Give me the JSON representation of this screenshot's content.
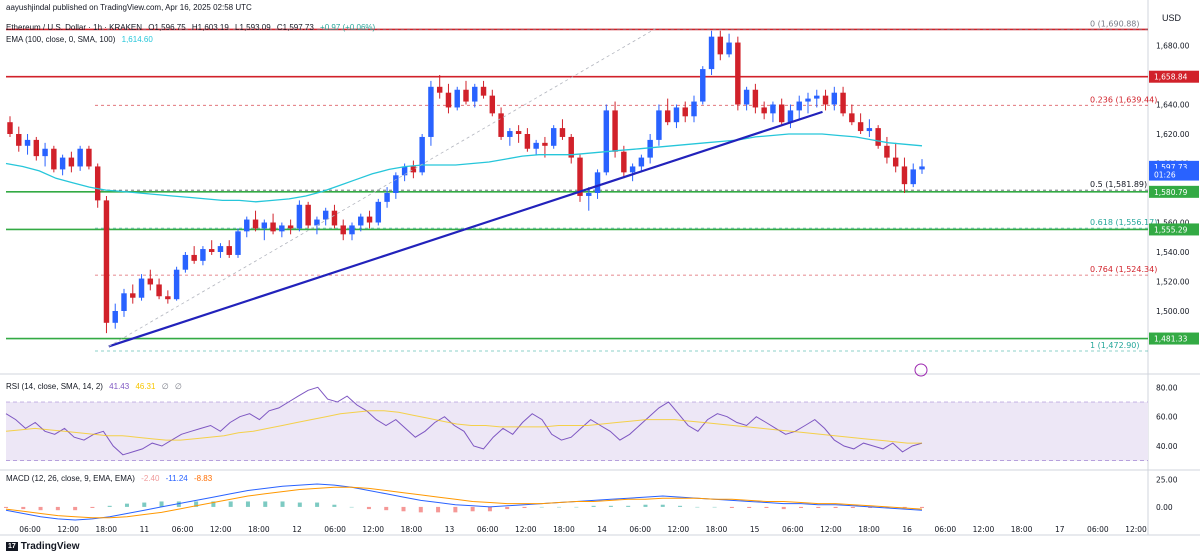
{
  "header": {
    "publisher": "aayushjindal published on TradingView.com, Apr 16, 2025 02:58 UTC",
    "symbol": "Ethereum / U.S. Dollar · 1h · KRAKEN",
    "open": "O1,596.75",
    "high": "H1,603.19",
    "low": "L1,593.09",
    "close": "C1,597.73",
    "change": "+0.97 (+0.06%)",
    "ema_label": "EMA (100, close, 0, SMA, 100)",
    "ema_value": "1,614.60",
    "currency": "USD"
  },
  "rsi_header": {
    "label": "RSI (14, close, SMA, 14, 2)",
    "value": "41.43",
    "ma": "46.31",
    "x1": "∅",
    "x2": "∅"
  },
  "macd_header": {
    "label": "MACD (12, 26, close, 9, EMA, EMA)",
    "v1": "-2.40",
    "v2": "-11.24",
    "v3": "-8.83"
  },
  "logo": "TradingView",
  "colors": {
    "up": "#2962ff",
    "down": "#d1212a",
    "ema": "#26c6da",
    "trend": "#2222bb",
    "resistance": "#d1212a",
    "support": "#33aa44",
    "rsi": "#7e57c2",
    "macd": "#2962ff",
    "signal": "#ff9800"
  },
  "chart_data": [
    {
      "type": "candlestick",
      "title": "Ethereum / U.S. Dollar · 1h · KRAKEN",
      "ylim": [
        1460,
        1700
      ],
      "y_ticks": [
        1480,
        1500,
        1520,
        1540,
        1560,
        1580,
        1600,
        1620,
        1640,
        1660,
        1680
      ],
      "y_tick_labels": [
        "1,480.00",
        "1,500.00",
        "1,520.00",
        "1,540.00",
        "1,560.00",
        "1,580.00",
        "1,600.00",
        "1,620.00",
        "1,640.00",
        "1,660.00",
        "1,680.00"
      ],
      "x_tick_labels": [
        "06:00",
        "12:00",
        "18:00",
        "11",
        "06:00",
        "12:00",
        "18:00",
        "12",
        "06:00",
        "12:00",
        "18:00",
        "13",
        "06:00",
        "12:00",
        "18:00",
        "14",
        "06:00",
        "12:00",
        "18:00",
        "15",
        "06:00",
        "12:00",
        "18:00",
        "16",
        "06:00",
        "12:00",
        "18:00",
        "17",
        "06:00",
        "12:00"
      ],
      "price_tags": [
        {
          "text": "1,658.84",
          "value": 1658.84,
          "color": "#d1212a"
        },
        {
          "text": "1,597.73",
          "value": 1597.73,
          "color": "#2962ff"
        },
        {
          "text": "01:26",
          "value": 1592.5,
          "color": "#2962ff"
        },
        {
          "text": "1,580.79",
          "value": 1580.79,
          "color": "#33aa44"
        },
        {
          "text": "1,555.29",
          "value": 1555.29,
          "color": "#33aa44"
        },
        {
          "text": "1,481.33",
          "value": 1481.33,
          "color": "#33aa44"
        }
      ],
      "fib_levels": [
        {
          "text": "0 (1,690.88)",
          "value": 1690.88,
          "color": "#787b86"
        },
        {
          "text": "0.236 (1,639.44)",
          "value": 1639.44,
          "color": "#d1212a"
        },
        {
          "text": "0.5 (1,581.89)",
          "value": 1581.89,
          "color": "#131722"
        },
        {
          "text": "0.618 (1,556.17)",
          "value": 1556.17,
          "color": "#26a69a"
        },
        {
          "text": "0.764 (1,524.34)",
          "value": 1524.34,
          "color": "#d1212a"
        },
        {
          "text": "1 (1,472.90)",
          "value": 1472.9,
          "color": "#26a69a"
        }
      ],
      "horizontal_lines": [
        {
          "value": 1690.88,
          "color": "#d1212a"
        },
        {
          "value": 1658.84,
          "color": "#d1212a"
        },
        {
          "value": 1580.79,
          "color": "#33aa44"
        },
        {
          "value": 1555.29,
          "color": "#33aa44"
        },
        {
          "value": 1481.33,
          "color": "#33aa44"
        }
      ],
      "candles": [
        [
          1628,
          1632,
          1618,
          1620
        ],
        [
          1620,
          1625,
          1608,
          1612
        ],
        [
          1612,
          1620,
          1606,
          1616
        ],
        [
          1616,
          1618,
          1602,
          1605
        ],
        [
          1605,
          1614,
          1598,
          1610
        ],
        [
          1610,
          1612,
          1594,
          1596
        ],
        [
          1596,
          1606,
          1592,
          1604
        ],
        [
          1604,
          1608,
          1594,
          1598
        ],
        [
          1598,
          1612,
          1595,
          1610
        ],
        [
          1610,
          1612,
          1596,
          1598
        ],
        [
          1598,
          1600,
          1570,
          1575
        ],
        [
          1575,
          1578,
          1485,
          1492
        ],
        [
          1492,
          1505,
          1488,
          1500
        ],
        [
          1500,
          1515,
          1496,
          1512
        ],
        [
          1512,
          1518,
          1505,
          1509
        ],
        [
          1509,
          1525,
          1507,
          1522
        ],
        [
          1522,
          1528,
          1514,
          1518
        ],
        [
          1518,
          1522,
          1508,
          1510
        ],
        [
          1510,
          1514,
          1505,
          1508
        ],
        [
          1508,
          1530,
          1507,
          1528
        ],
        [
          1528,
          1540,
          1526,
          1538
        ],
        [
          1538,
          1544,
          1532,
          1534
        ],
        [
          1534,
          1544,
          1531,
          1542
        ],
        [
          1542,
          1548,
          1538,
          1540
        ],
        [
          1540,
          1546,
          1536,
          1544
        ],
        [
          1544,
          1548,
          1536,
          1538
        ],
        [
          1538,
          1556,
          1536,
          1554
        ],
        [
          1554,
          1564,
          1550,
          1562
        ],
        [
          1562,
          1568,
          1554,
          1556
        ],
        [
          1556,
          1562,
          1548,
          1560
        ],
        [
          1560,
          1566,
          1552,
          1554
        ],
        [
          1554,
          1560,
          1550,
          1558
        ],
        [
          1558,
          1562,
          1552,
          1556
        ],
        [
          1556,
          1575,
          1554,
          1572
        ],
        [
          1572,
          1574,
          1556,
          1558
        ],
        [
          1558,
          1564,
          1552,
          1562
        ],
        [
          1562,
          1570,
          1558,
          1568
        ],
        [
          1568,
          1572,
          1556,
          1558
        ],
        [
          1558,
          1562,
          1548,
          1552
        ],
        [
          1552,
          1560,
          1548,
          1558
        ],
        [
          1558,
          1566,
          1554,
          1564
        ],
        [
          1564,
          1568,
          1556,
          1560
        ],
        [
          1560,
          1576,
          1558,
          1574
        ],
        [
          1574,
          1584,
          1570,
          1580
        ],
        [
          1580,
          1594,
          1576,
          1592
        ],
        [
          1592,
          1600,
          1588,
          1598
        ],
        [
          1598,
          1602,
          1590,
          1594
        ],
        [
          1594,
          1620,
          1592,
          1618
        ],
        [
          1618,
          1656,
          1612,
          1652
        ],
        [
          1652,
          1660,
          1644,
          1648
        ],
        [
          1648,
          1654,
          1634,
          1638
        ],
        [
          1638,
          1652,
          1636,
          1650
        ],
        [
          1650,
          1656,
          1640,
          1642
        ],
        [
          1642,
          1654,
          1638,
          1652
        ],
        [
          1652,
          1656,
          1644,
          1646
        ],
        [
          1646,
          1650,
          1632,
          1634
        ],
        [
          1634,
          1638,
          1616,
          1618
        ],
        [
          1618,
          1624,
          1612,
          1622
        ],
        [
          1622,
          1626,
          1614,
          1620
        ],
        [
          1620,
          1624,
          1608,
          1610
        ],
        [
          1610,
          1616,
          1606,
          1614
        ],
        [
          1614,
          1618,
          1604,
          1612
        ],
        [
          1612,
          1626,
          1610,
          1624
        ],
        [
          1624,
          1630,
          1616,
          1618
        ],
        [
          1618,
          1620,
          1600,
          1604
        ],
        [
          1604,
          1606,
          1574,
          1578
        ],
        [
          1578,
          1584,
          1568,
          1580
        ],
        [
          1580,
          1596,
          1576,
          1594
        ],
        [
          1594,
          1640,
          1592,
          1636
        ],
        [
          1636,
          1642,
          1604,
          1608
        ],
        [
          1608,
          1612,
          1590,
          1594
        ],
        [
          1594,
          1600,
          1588,
          1598
        ],
        [
          1598,
          1606,
          1594,
          1604
        ],
        [
          1604,
          1620,
          1600,
          1616
        ],
        [
          1616,
          1640,
          1612,
          1636
        ],
        [
          1636,
          1644,
          1626,
          1628
        ],
        [
          1628,
          1640,
          1624,
          1638
        ],
        [
          1638,
          1642,
          1628,
          1632
        ],
        [
          1632,
          1646,
          1628,
          1642
        ],
        [
          1642,
          1666,
          1640,
          1664
        ],
        [
          1664,
          1690,
          1660,
          1686
        ],
        [
          1686,
          1690,
          1670,
          1674
        ],
        [
          1674,
          1688,
          1672,
          1682
        ],
        [
          1682,
          1686,
          1636,
          1640
        ],
        [
          1640,
          1652,
          1636,
          1650
        ],
        [
          1650,
          1654,
          1634,
          1638
        ],
        [
          1638,
          1642,
          1630,
          1634
        ],
        [
          1634,
          1642,
          1628,
          1640
        ],
        [
          1640,
          1644,
          1626,
          1628
        ],
        [
          1628,
          1640,
          1624,
          1636
        ],
        [
          1636,
          1646,
          1630,
          1642
        ],
        [
          1642,
          1648,
          1634,
          1644
        ],
        [
          1644,
          1650,
          1638,
          1646
        ],
        [
          1646,
          1650,
          1636,
          1640
        ],
        [
          1640,
          1652,
          1636,
          1648
        ],
        [
          1648,
          1652,
          1632,
          1634
        ],
        [
          1634,
          1640,
          1626,
          1628
        ],
        [
          1628,
          1634,
          1620,
          1622
        ],
        [
          1622,
          1630,
          1618,
          1624
        ],
        [
          1624,
          1626,
          1610,
          1612
        ],
        [
          1612,
          1618,
          1600,
          1604
        ],
        [
          1604,
          1614,
          1594,
          1598
        ],
        [
          1598,
          1604,
          1580,
          1586
        ],
        [
          1586,
          1600,
          1584,
          1596
        ],
        [
          1596,
          1603,
          1593,
          1598
        ]
      ],
      "ema100": [
        1600,
        1598,
        1595,
        1590,
        1587,
        1584,
        1582,
        1581,
        1580,
        1579,
        1578,
        1577,
        1576,
        1575,
        1575,
        1574,
        1575,
        1576,
        1578,
        1581,
        1585,
        1589,
        1593,
        1596,
        1598,
        1599,
        1599,
        1599,
        1600,
        1601,
        1603,
        1605,
        1606,
        1606,
        1606,
        1607,
        1608,
        1609,
        1610,
        1611,
        1612,
        1613,
        1614,
        1615,
        1616,
        1618,
        1619,
        1620,
        1620,
        1620,
        1619,
        1618,
        1616,
        1614,
        1613,
        1612
      ],
      "trendline": [
        [
          0.09,
          1476
        ],
        [
          0.715,
          1635
        ]
      ],
      "dashed_trend": [
        [
          0.09,
          1476
        ],
        [
          0.57,
          1692
        ]
      ]
    },
    {
      "type": "line",
      "title": "RSI (14, close, SMA, 14, 2)",
      "ylim": [
        25,
        85
      ],
      "y_ticks": [
        40,
        60,
        80
      ],
      "y_tick_labels": [
        "40.00",
        "60.00",
        "80.00"
      ],
      "band": [
        30,
        70
      ],
      "series": [
        {
          "values": [
            62,
            58,
            52,
            56,
            50,
            48,
            52,
            46,
            44,
            48,
            50,
            40,
            34,
            36,
            38,
            42,
            40,
            44,
            48,
            50,
            52,
            54,
            50,
            56,
            60,
            62,
            58,
            64,
            66,
            70,
            74,
            78,
            80,
            72,
            70,
            74,
            68,
            64,
            58,
            54,
            58,
            52,
            46,
            50,
            56,
            60,
            54,
            50,
            40,
            38,
            46,
            52,
            48,
            56,
            62,
            58,
            48,
            44,
            46,
            52,
            58,
            54,
            50,
            44,
            48,
            54,
            60,
            66,
            70,
            62,
            54,
            50,
            58,
            62,
            60,
            56,
            54,
            60,
            56,
            52,
            48,
            50,
            54,
            58,
            52,
            44,
            40,
            38,
            42,
            40,
            38,
            42,
            36,
            40,
            42
          ]
        },
        {
          "values": [
            50,
            51,
            52,
            51,
            50,
            49,
            48,
            47,
            47,
            46,
            45,
            44,
            44,
            45,
            46,
            47,
            49,
            50,
            52,
            54,
            56,
            58,
            60,
            62,
            63,
            64,
            64,
            63,
            61,
            59,
            57,
            55,
            54,
            54,
            53,
            53,
            53,
            53,
            54,
            54,
            54,
            55,
            56,
            57,
            58,
            58,
            58,
            57,
            56,
            55,
            54,
            53,
            52,
            51,
            50,
            49,
            48,
            47,
            46,
            45,
            44,
            43,
            42,
            42
          ]
        }
      ]
    },
    {
      "type": "line",
      "title": "MACD (12, 26, close, 9, EMA, EMA)",
      "ylim": [
        -12,
        32
      ],
      "y_ticks": [
        0,
        25
      ],
      "y_tick_labels": [
        "0.00",
        "25.00"
      ],
      "series": [
        {
          "values": [
            -3,
            -6,
            -9,
            -11,
            -12,
            -11,
            -9,
            -6,
            -3,
            0,
            3,
            6,
            9,
            12,
            15,
            17,
            19,
            20,
            21,
            20,
            18,
            15,
            12,
            9,
            6,
            4,
            2,
            1,
            0,
            1,
            2,
            3,
            4,
            5,
            6,
            7,
            8,
            9,
            10,
            9,
            8,
            7,
            6,
            5,
            4,
            3,
            3,
            2,
            2,
            1,
            0,
            -1,
            -2,
            -3
          ]
        },
        {
          "values": [
            -2,
            -4,
            -6,
            -8,
            -9,
            -10,
            -10,
            -9,
            -7,
            -5,
            -2,
            1,
            4,
            7,
            10,
            12,
            14,
            16,
            17,
            18,
            18,
            17,
            15,
            13,
            11,
            9,
            7,
            5,
            4,
            3,
            3,
            3,
            4,
            5,
            5,
            6,
            7,
            7,
            8,
            8,
            8,
            7,
            7,
            6,
            5,
            5,
            4,
            3,
            3,
            2,
            1,
            0,
            -1,
            -2
          ]
        }
      ]
    }
  ]
}
